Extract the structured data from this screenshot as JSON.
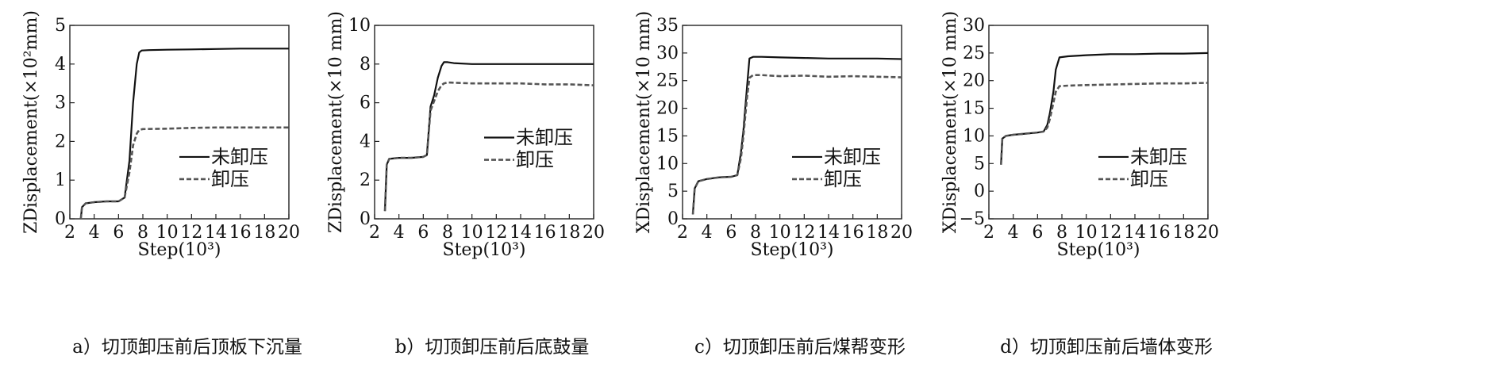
{
  "chart_data": [
    {
      "type": "line",
      "caption": "a）切顶卸压前后顶板下沉量",
      "xlabel": "Step(10³)",
      "ylabel": "ZDisplacement(×10²mm)",
      "xlim": [
        2,
        20
      ],
      "ylim": [
        0,
        5
      ],
      "xticks": [
        2,
        4,
        6,
        8,
        10,
        12,
        14,
        16,
        18,
        20
      ],
      "yticks": [
        0,
        1,
        2,
        3,
        4,
        5
      ],
      "legend_position": "lower-right",
      "grid": false,
      "series": [
        {
          "name": "未卸压",
          "style": "solid",
          "x": [
            2.9,
            3.0,
            3.3,
            4.0,
            5.0,
            6.0,
            6.5,
            6.9,
            7.2,
            7.5,
            7.7,
            7.9,
            8.5,
            10,
            12,
            14,
            16,
            18,
            20
          ],
          "y": [
            0,
            0.3,
            0.4,
            0.43,
            0.45,
            0.45,
            0.55,
            1.5,
            3.0,
            4.0,
            4.3,
            4.35,
            4.36,
            4.37,
            4.38,
            4.39,
            4.4,
            4.4,
            4.4
          ]
        },
        {
          "name": "卸压",
          "style": "dashed",
          "x": [
            2.9,
            3.0,
            3.3,
            4.0,
            5.0,
            6.0,
            6.5,
            6.9,
            7.2,
            7.5,
            7.7,
            8.0,
            10,
            12,
            14,
            16,
            18,
            20
          ],
          "y": [
            0,
            0.3,
            0.4,
            0.43,
            0.45,
            0.45,
            0.55,
            1.2,
            1.9,
            2.2,
            2.3,
            2.32,
            2.33,
            2.35,
            2.36,
            2.36,
            2.36,
            2.36
          ]
        }
      ]
    },
    {
      "type": "line",
      "caption": "b）切顶卸压前后底鼓量",
      "xlabel": "Step(10³)",
      "ylabel": "ZDisplacement(×10 mm)",
      "xlim": [
        2,
        20
      ],
      "ylim": [
        0,
        10
      ],
      "xticks": [
        2,
        4,
        6,
        8,
        10,
        12,
        14,
        16,
        18,
        20
      ],
      "yticks": [
        0,
        2,
        4,
        6,
        8,
        10
      ],
      "legend_position": "middle-right",
      "grid": false,
      "series": [
        {
          "name": "未卸压",
          "style": "solid",
          "x": [
            2.85,
            3.0,
            3.2,
            4.0,
            5.0,
            6.0,
            6.3,
            6.6,
            6.9,
            7.2,
            7.5,
            7.7,
            8.0,
            8.5,
            10,
            12,
            14,
            16,
            18,
            20
          ],
          "y": [
            0.4,
            2.8,
            3.1,
            3.15,
            3.15,
            3.2,
            3.3,
            5.8,
            6.4,
            7.3,
            7.9,
            8.1,
            8.1,
            8.05,
            8.0,
            8.0,
            8.0,
            8.0,
            8.0,
            8.0
          ]
        },
        {
          "name": "卸压",
          "style": "dashed",
          "x": [
            2.85,
            3.0,
            3.2,
            4.0,
            5.0,
            6.0,
            6.3,
            6.6,
            6.9,
            7.2,
            7.5,
            7.7,
            8.0,
            10,
            12,
            14,
            16,
            18,
            20
          ],
          "y": [
            0.4,
            2.8,
            3.1,
            3.15,
            3.15,
            3.2,
            3.3,
            5.6,
            6.1,
            6.6,
            6.9,
            7.0,
            7.05,
            7.0,
            7.0,
            7.0,
            6.95,
            6.95,
            6.9
          ]
        }
      ]
    },
    {
      "type": "line",
      "caption": "c）切顶卸压前后煤帮变形",
      "xlabel": "Step(10³)",
      "ylabel": "XDisplacement(×10 mm)",
      "xlim": [
        2,
        20
      ],
      "ylim": [
        0,
        35
      ],
      "xticks": [
        2,
        4,
        6,
        8,
        10,
        12,
        14,
        16,
        18,
        20
      ],
      "yticks": [
        0,
        5,
        10,
        15,
        20,
        25,
        30,
        35
      ],
      "legend_position": "lower-right",
      "grid": false,
      "series": [
        {
          "name": "未卸压",
          "style": "solid",
          "x": [
            2.85,
            3.0,
            3.3,
            4.0,
            5.0,
            6.0,
            6.5,
            6.8,
            7.0,
            7.3,
            7.5,
            7.8,
            8.5,
            10,
            12,
            14,
            16,
            18,
            20
          ],
          "y": [
            0.8,
            5.5,
            6.8,
            7.2,
            7.5,
            7.6,
            7.9,
            12,
            16,
            24,
            29.0,
            29.3,
            29.3,
            29.2,
            29.1,
            29.0,
            29.0,
            29.0,
            28.9
          ]
        },
        {
          "name": "卸压",
          "style": "dashed",
          "x": [
            2.85,
            3.0,
            3.3,
            4.0,
            5.0,
            6.0,
            6.5,
            6.8,
            7.0,
            7.3,
            7.5,
            7.8,
            8.5,
            10,
            12,
            14,
            16,
            18,
            20
          ],
          "y": [
            0.8,
            5.5,
            6.8,
            7.2,
            7.5,
            7.6,
            7.9,
            11,
            15,
            22,
            25.5,
            26.0,
            26.0,
            25.8,
            25.9,
            25.7,
            25.8,
            25.7,
            25.6
          ]
        }
      ]
    },
    {
      "type": "line",
      "caption": "d）切顶卸压前后墙体变形",
      "xlabel": "Step(10³)",
      "ylabel": "XDisplacement(×10 mm)",
      "xlim": [
        2,
        20
      ],
      "ylim": [
        -5,
        30
      ],
      "xticks": [
        2,
        4,
        6,
        8,
        10,
        12,
        14,
        16,
        18,
        20
      ],
      "yticks": [
        -5,
        0,
        5,
        10,
        15,
        20,
        25,
        30
      ],
      "legend_position": "lower-right",
      "grid": false,
      "series": [
        {
          "name": "未卸压",
          "style": "solid",
          "x": [
            3.0,
            3.1,
            3.4,
            4.0,
            5.0,
            6.0,
            6.5,
            6.8,
            7.0,
            7.3,
            7.5,
            7.8,
            8.5,
            10,
            12,
            14,
            16,
            18,
            20
          ],
          "y": [
            4.8,
            9.5,
            10.0,
            10.2,
            10.4,
            10.6,
            10.8,
            12,
            14,
            18,
            22,
            24.2,
            24.4,
            24.6,
            24.8,
            24.8,
            24.9,
            24.9,
            25.0
          ]
        },
        {
          "name": "卸压",
          "style": "dashed",
          "x": [
            3.0,
            3.1,
            3.4,
            4.0,
            5.0,
            6.0,
            6.5,
            6.8,
            7.0,
            7.3,
            7.5,
            7.8,
            8.5,
            10,
            12,
            14,
            16,
            18,
            20
          ],
          "y": [
            4.8,
            9.5,
            10.0,
            10.2,
            10.4,
            10.6,
            10.8,
            11.5,
            13,
            16,
            18,
            19.0,
            19.1,
            19.2,
            19.3,
            19.4,
            19.5,
            19.5,
            19.6
          ]
        }
      ]
    }
  ]
}
